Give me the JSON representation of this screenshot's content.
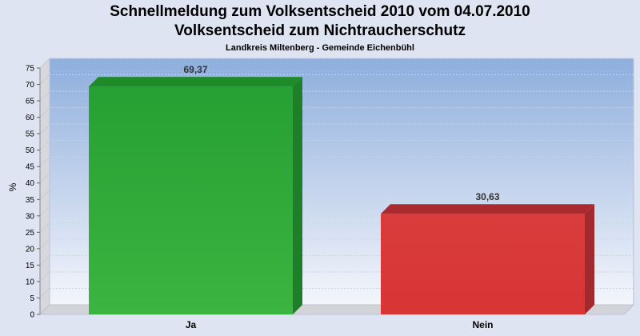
{
  "chart_data": {
    "type": "bar",
    "title": "Schnellmeldung zum Volksentscheid 2010 vom 04.07.2010",
    "subtitle": "Volksentscheid zum Nichtraucherschutz",
    "subsubtitle": "Landkreis Miltenberg - Gemeinde Eichenbühl",
    "xlabel": "",
    "ylabel": "%",
    "categories": [
      "Ja",
      "Nein"
    ],
    "values": [
      69.37,
      30.63
    ],
    "data_labels": [
      "69,37",
      "30,63"
    ],
    "ylim": [
      0,
      75
    ],
    "yticks": [
      0,
      5,
      10,
      15,
      20,
      25,
      30,
      35,
      40,
      45,
      50,
      55,
      60,
      65,
      70,
      75
    ],
    "grid": true,
    "colors": {
      "Ja": "#2ea836",
      "Nein": "#d83a3a",
      "plot_top": "#8eaedd",
      "plot_bottom": "#f4f6fb"
    }
  }
}
